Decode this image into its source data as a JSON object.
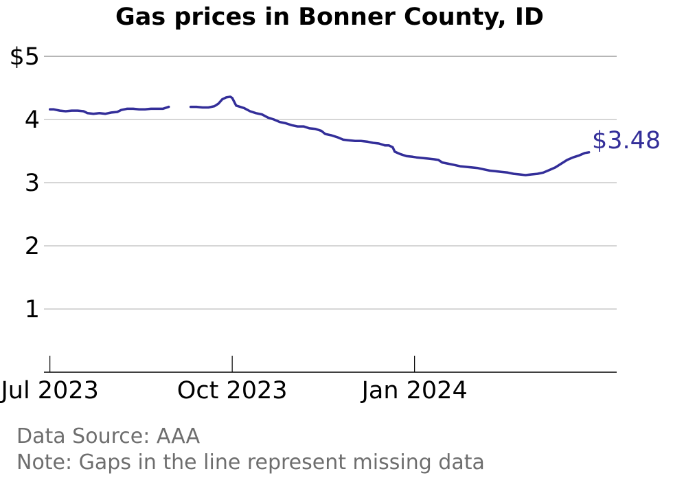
{
  "chart_data": {
    "type": "line",
    "title": "Gas prices in Bonner County, ID",
    "ylim": [
      0,
      5
    ],
    "y_ticks": [
      {
        "value": 5,
        "label": "$5"
      },
      {
        "value": 4,
        "label": "4"
      },
      {
        "value": 3,
        "label": "3"
      },
      {
        "value": 2,
        "label": "2"
      },
      {
        "value": 1,
        "label": "1"
      }
    ],
    "x_range": [
      "2023-06-28",
      "2024-04-12"
    ],
    "x_ticks": [
      {
        "date": "2023-07-01",
        "label": "Jul 2023"
      },
      {
        "date": "2023-10-01",
        "label": "Oct 2023"
      },
      {
        "date": "2024-01-01",
        "label": "Jan 2024"
      }
    ],
    "grid": true,
    "line_color": "#332e99",
    "end_label": "$3.48",
    "series": [
      {
        "segments": [
          [
            [
              "2023-07-01",
              4.16
            ],
            [
              "2023-07-03",
              4.16
            ],
            [
              "2023-07-06",
              4.14
            ],
            [
              "2023-07-09",
              4.13
            ],
            [
              "2023-07-12",
              4.14
            ],
            [
              "2023-07-15",
              4.14
            ],
            [
              "2023-07-18",
              4.13
            ],
            [
              "2023-07-20",
              4.1
            ],
            [
              "2023-07-23",
              4.09
            ],
            [
              "2023-07-26",
              4.1
            ],
            [
              "2023-07-29",
              4.09
            ],
            [
              "2023-08-01",
              4.11
            ],
            [
              "2023-08-04",
              4.12
            ],
            [
              "2023-08-06",
              4.15
            ],
            [
              "2023-08-09",
              4.17
            ],
            [
              "2023-08-12",
              4.17
            ],
            [
              "2023-08-15",
              4.16
            ],
            [
              "2023-08-18",
              4.16
            ],
            [
              "2023-08-21",
              4.17
            ],
            [
              "2023-08-24",
              4.17
            ],
            [
              "2023-08-27",
              4.17
            ],
            [
              "2023-08-30",
              4.2
            ]
          ],
          [
            [
              "2023-09-10",
              4.2
            ],
            [
              "2023-09-13",
              4.2
            ],
            [
              "2023-09-16",
              4.19
            ],
            [
              "2023-09-19",
              4.19
            ],
            [
              "2023-09-22",
              4.21
            ],
            [
              "2023-09-24",
              4.25
            ],
            [
              "2023-09-26",
              4.32
            ],
            [
              "2023-09-28",
              4.35
            ],
            [
              "2023-09-30",
              4.36
            ],
            [
              "2023-10-01",
              4.34
            ],
            [
              "2023-10-03",
              4.22
            ],
            [
              "2023-10-05",
              4.2
            ],
            [
              "2023-10-07",
              4.18
            ],
            [
              "2023-10-10",
              4.13
            ],
            [
              "2023-10-13",
              4.1
            ],
            [
              "2023-10-16",
              4.08
            ],
            [
              "2023-10-19",
              4.03
            ],
            [
              "2023-10-22",
              4.0
            ],
            [
              "2023-10-25",
              3.96
            ],
            [
              "2023-10-28",
              3.94
            ],
            [
              "2023-10-31",
              3.91
            ],
            [
              "2023-11-03",
              3.89
            ],
            [
              "2023-11-06",
              3.89
            ],
            [
              "2023-11-09",
              3.86
            ],
            [
              "2023-11-12",
              3.85
            ],
            [
              "2023-11-15",
              3.82
            ],
            [
              "2023-11-17",
              3.77
            ],
            [
              "2023-11-20",
              3.75
            ],
            [
              "2023-11-23",
              3.72
            ],
            [
              "2023-11-26",
              3.68
            ],
            [
              "2023-11-29",
              3.67
            ],
            [
              "2023-12-02",
              3.66
            ],
            [
              "2023-12-05",
              3.66
            ],
            [
              "2023-12-08",
              3.65
            ],
            [
              "2023-12-11",
              3.63
            ],
            [
              "2023-12-14",
              3.62
            ],
            [
              "2023-12-17",
              3.59
            ],
            [
              "2023-12-19",
              3.59
            ],
            [
              "2023-12-21",
              3.56
            ],
            [
              "2023-12-22",
              3.49
            ],
            [
              "2023-12-25",
              3.45
            ],
            [
              "2023-12-28",
              3.42
            ],
            [
              "2023-12-31",
              3.41
            ],
            [
              "2024-01-02",
              3.4
            ],
            [
              "2024-01-05",
              3.39
            ],
            [
              "2024-01-08",
              3.38
            ],
            [
              "2024-01-11",
              3.37
            ],
            [
              "2024-01-13",
              3.36
            ],
            [
              "2024-01-15",
              3.32
            ],
            [
              "2024-01-18",
              3.3
            ],
            [
              "2024-01-21",
              3.28
            ],
            [
              "2024-01-24",
              3.26
            ],
            [
              "2024-01-27",
              3.25
            ],
            [
              "2024-01-30",
              3.24
            ],
            [
              "2024-02-02",
              3.23
            ],
            [
              "2024-02-05",
              3.21
            ],
            [
              "2024-02-08",
              3.19
            ],
            [
              "2024-02-11",
              3.18
            ],
            [
              "2024-02-14",
              3.17
            ],
            [
              "2024-02-17",
              3.16
            ],
            [
              "2024-02-20",
              3.14
            ],
            [
              "2024-02-23",
              3.13
            ],
            [
              "2024-02-26",
              3.12
            ],
            [
              "2024-02-29",
              3.13
            ],
            [
              "2024-03-03",
              3.14
            ],
            [
              "2024-03-06",
              3.16
            ],
            [
              "2024-03-09",
              3.2
            ],
            [
              "2024-03-12",
              3.24
            ],
            [
              "2024-03-15",
              3.3
            ],
            [
              "2024-03-18",
              3.36
            ],
            [
              "2024-03-21",
              3.4
            ],
            [
              "2024-03-24",
              3.43
            ],
            [
              "2024-03-27",
              3.47
            ],
            [
              "2024-03-29",
              3.48
            ]
          ]
        ]
      }
    ]
  },
  "notes": {
    "source": "Data Source: AAA",
    "gaps": "Note: Gaps in the line represent missing data"
  }
}
